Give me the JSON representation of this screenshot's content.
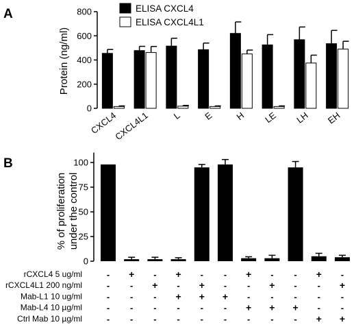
{
  "chart_data": [
    {
      "panel": "A",
      "type": "bar",
      "ylabel": "Protein (ng/ml)",
      "ylim": [
        0,
        800
      ],
      "yticks": [
        0,
        200,
        400,
        600,
        800
      ],
      "categories": [
        "CXCL4",
        "CXCL4L1",
        "L",
        "E",
        "H",
        "LE",
        "LH",
        "EH"
      ],
      "legend_position": "top",
      "series": [
        {
          "name": "ELISA CXCL4",
          "fill": "#000000",
          "values": [
            455,
            478,
            515,
            485,
            620,
            525,
            568,
            535
          ],
          "errors": [
            32,
            35,
            65,
            55,
            95,
            85,
            105,
            110
          ]
        },
        {
          "name": "ELISA CXCL4L1",
          "fill": "#ffffff",
          "values": [
            15,
            462,
            18,
            15,
            450,
            15,
            375,
            490
          ],
          "errors": [
            5,
            50,
            6,
            5,
            32,
            5,
            65,
            65
          ]
        }
      ]
    },
    {
      "panel": "B",
      "type": "bar",
      "ylabel_lines": [
        "% of proliferation",
        "under the control"
      ],
      "ylim": [
        0,
        110
      ],
      "yticks": [
        0,
        25,
        50,
        75,
        100
      ],
      "values": [
        98,
        2,
        2,
        2,
        95,
        98,
        3,
        3,
        95,
        5,
        4
      ],
      "errors": [
        0,
        2,
        2,
        1.5,
        3,
        5,
        1.5,
        3,
        6,
        3,
        2
      ],
      "treatment_rows": [
        {
          "label": "rCXCL4 5 ug/ml",
          "signs": [
            "-",
            "+",
            "-",
            "+",
            "-",
            "-",
            "+",
            "-",
            "-",
            "+",
            "-"
          ]
        },
        {
          "label": "rCXCL4L1 200 ng/ml",
          "signs": [
            "-",
            "-",
            "+",
            "-",
            "+",
            "-",
            "-",
            "+",
            "-",
            "-",
            "+"
          ]
        },
        {
          "label": "Mab-L1 10 ug/ml",
          "signs": [
            "-",
            "-",
            "-",
            "+",
            "+",
            "+",
            "-",
            "-",
            "-",
            "-",
            "-"
          ]
        },
        {
          "label": "Mab-L4 10 µg/ml",
          "signs": [
            "-",
            "-",
            "-",
            "-",
            "-",
            "-",
            "+",
            "+",
            "+",
            "-",
            "-"
          ]
        },
        {
          "label": "Ctrl Mab 10 µg/ml",
          "signs": [
            "-",
            "-",
            "-",
            "-",
            "-",
            "-",
            "-",
            "-",
            "-",
            "+",
            "+"
          ]
        }
      ]
    }
  ]
}
